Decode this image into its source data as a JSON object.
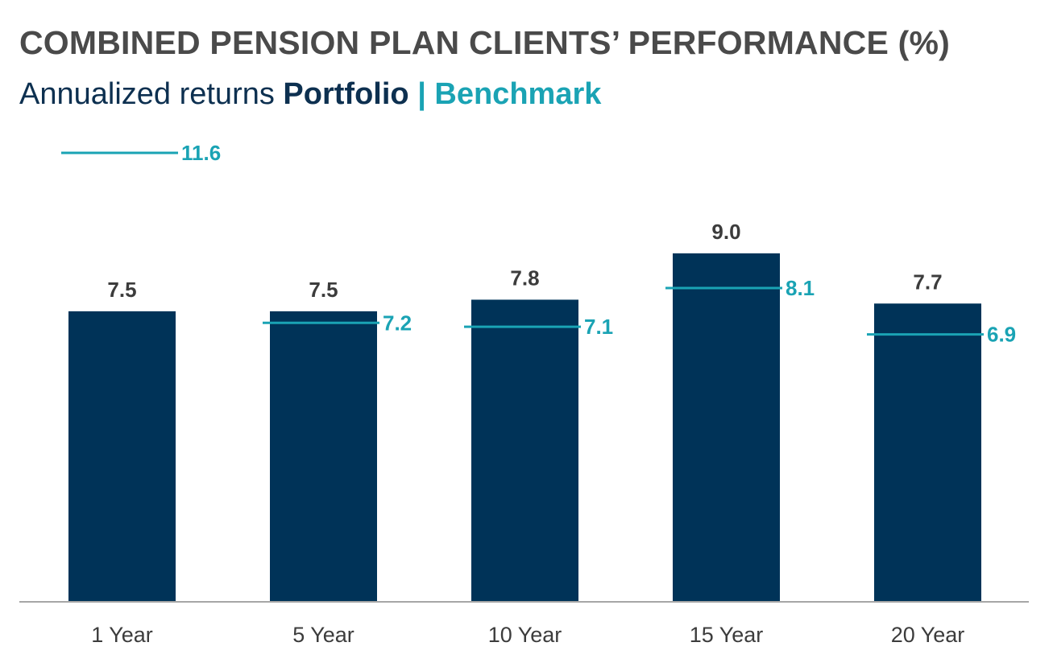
{
  "chart_data": {
    "type": "bar",
    "title": "COMBINED PENSION PLAN CLIENTS’ PERFORMANCE (%)",
    "subtitle": {
      "prefix": "Annualized returns",
      "portfolio_label": "Portfolio",
      "separator": "|",
      "benchmark_label": "Benchmark"
    },
    "categories": [
      "1 Year",
      "5 Year",
      "10 Year",
      "15 Year",
      "20 Year"
    ],
    "series": [
      {
        "name": "Portfolio",
        "kind": "bar",
        "color": "#003358",
        "values": [
          7.5,
          7.5,
          7.8,
          9.0,
          7.7
        ],
        "labels": [
          "7.5",
          "7.5",
          "7.8",
          "9.0",
          "7.7"
        ]
      },
      {
        "name": "Benchmark",
        "kind": "marker-line",
        "color": "#1aa3b4",
        "values": [
          11.6,
          7.2,
          7.1,
          8.1,
          6.9
        ],
        "labels": [
          "11.6",
          "7.2",
          "7.1",
          "8.1",
          "6.9"
        ]
      }
    ],
    "ylim": [
      0,
      11.6
    ],
    "xlabel": "",
    "ylabel": "",
    "grid": false,
    "baseline_color": "#a6a6a6",
    "text_color": "#3c3c3c"
  }
}
